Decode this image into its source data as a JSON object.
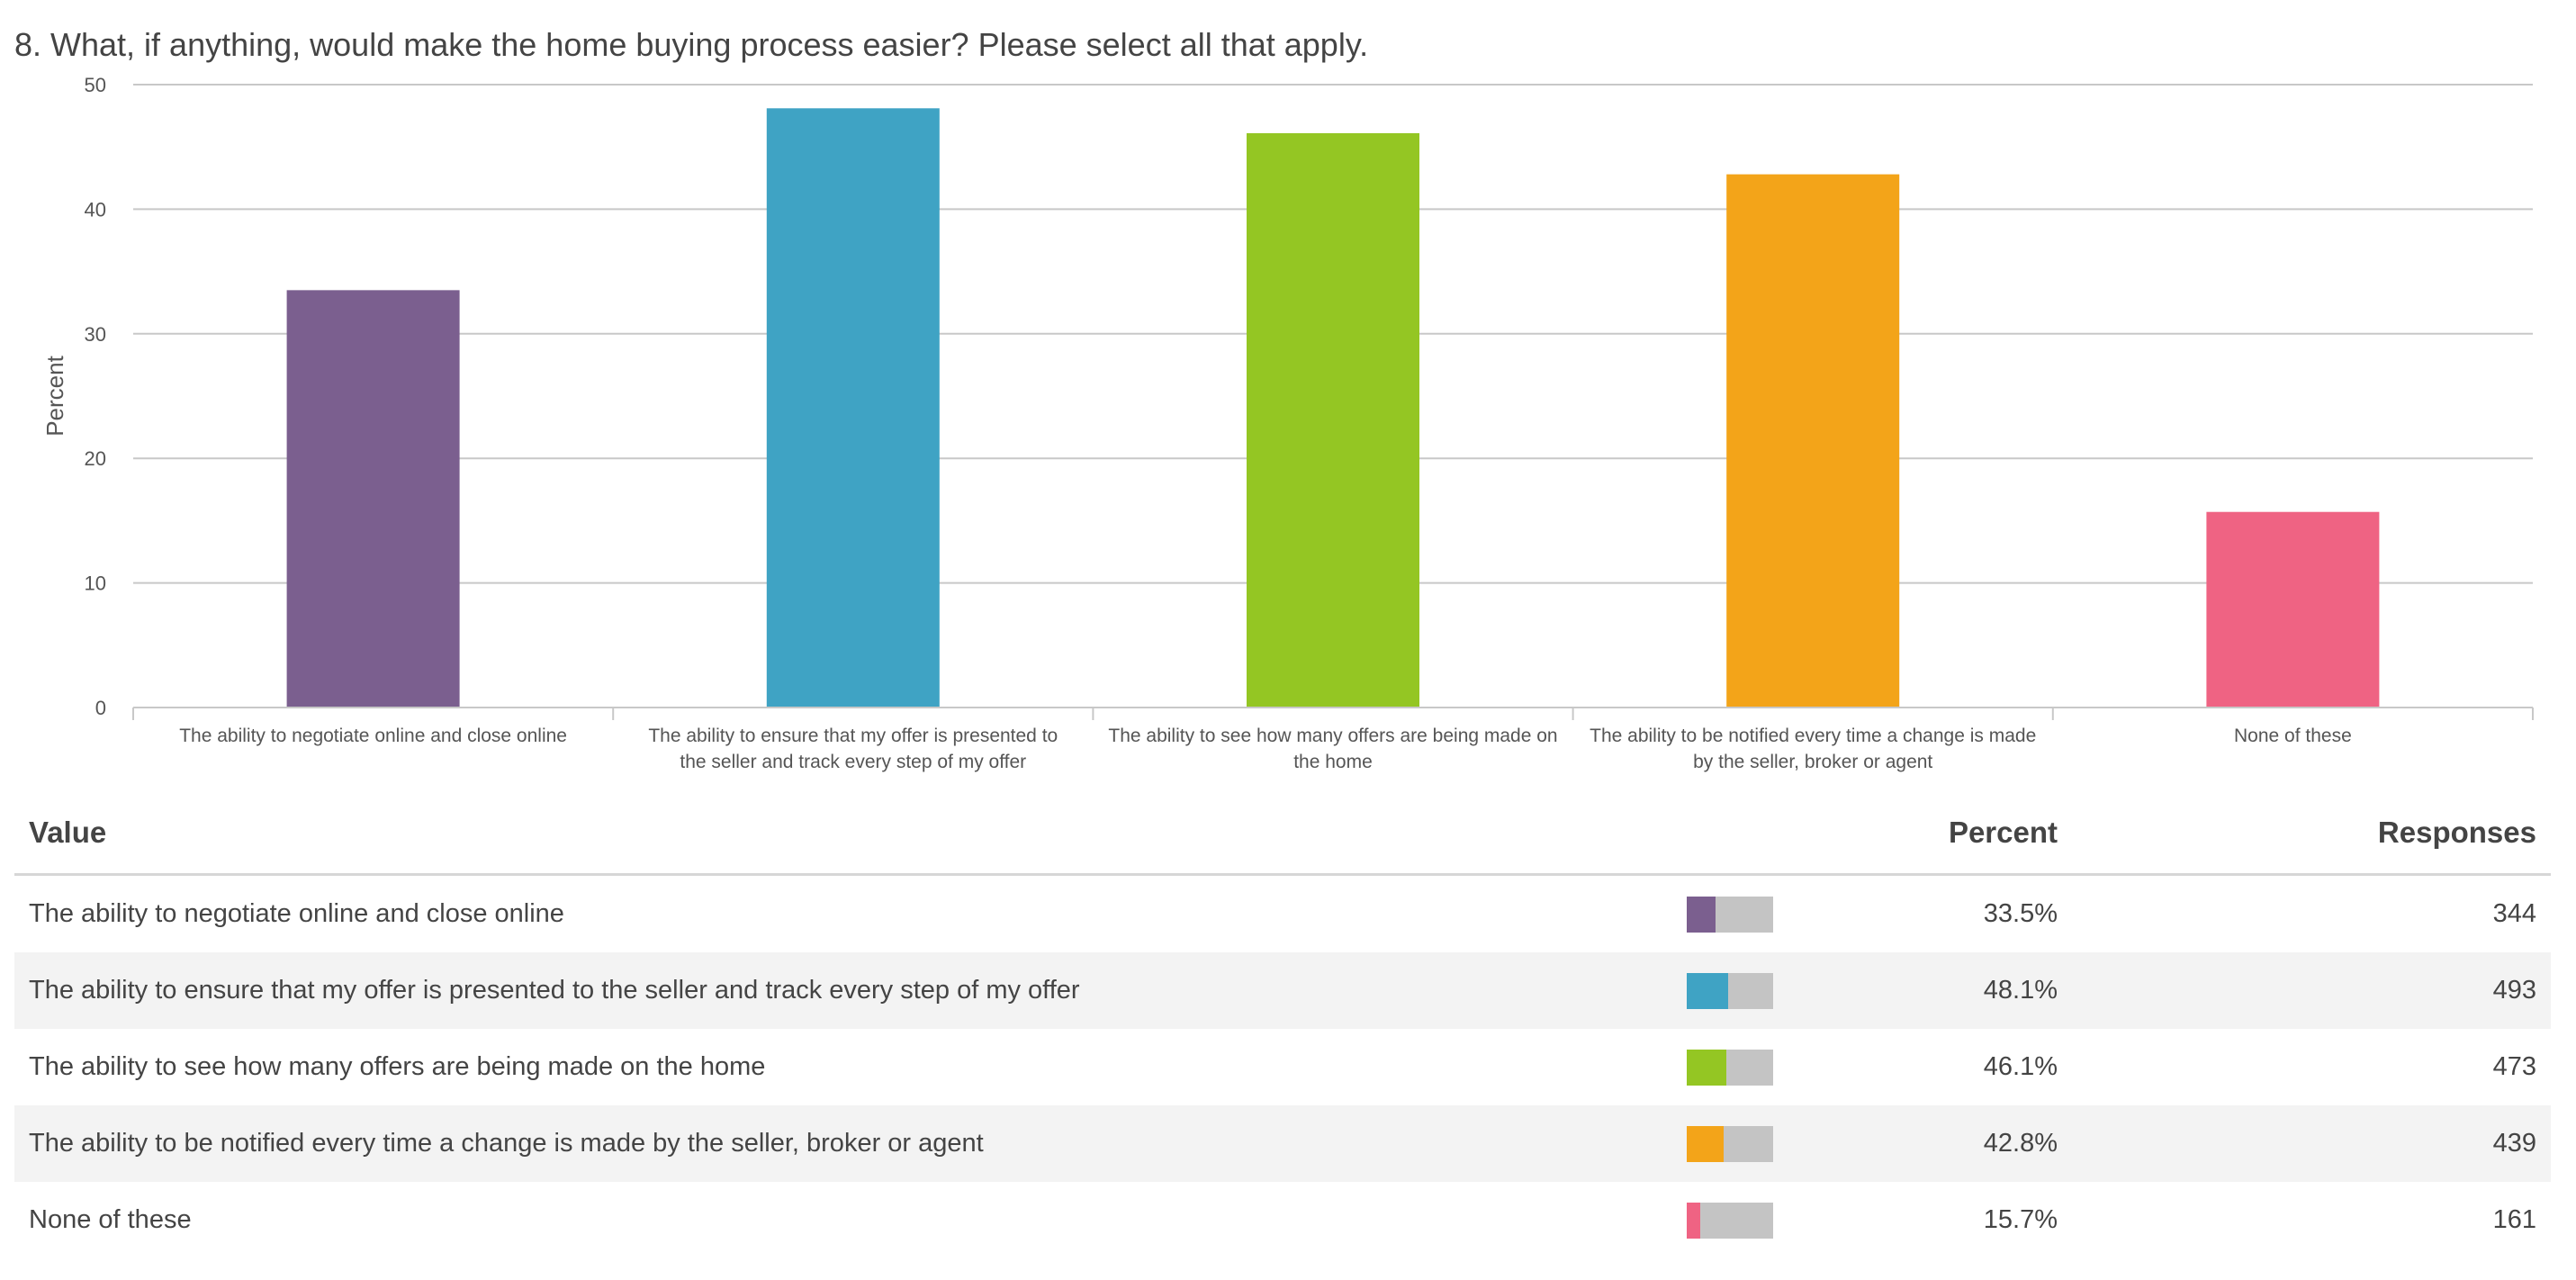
{
  "question": "8. What, if anything, would make the home buying process easier? Please select all that apply.",
  "chart_data": {
    "type": "bar",
    "title": "8. What, if anything, would make the home buying process easier? Please select all that apply.",
    "xlabel": "",
    "ylabel": "Percent",
    "ylim": [
      0,
      50
    ],
    "yticks": [
      "0",
      "10",
      "20",
      "30",
      "40",
      "50"
    ],
    "grid": true,
    "categories": [
      "The ability to negotiate online and close online",
      "The ability to ensure that my offer is presented to the seller and track every step of my offer",
      "The ability to see how many offers are being made on the home",
      "The ability to be notified every time a change is made by the seller, broker or agent",
      "None of these"
    ],
    "category_lines": [
      [
        "The ability to negotiate online and close online"
      ],
      [
        "The ability to ensure that my offer is presented to",
        "the seller and track every step of my offer"
      ],
      [
        "The ability to see how many offers are being made on",
        "the home"
      ],
      [
        "The ability to be notified every time a change is made",
        "by the seller, broker or agent"
      ],
      [
        "None of these"
      ]
    ],
    "values": [
      33.5,
      48.1,
      46.1,
      42.8,
      15.7
    ],
    "colors": [
      "#7b5f8f",
      "#3fa3c4",
      "#94c623",
      "#f3a419",
      "#ef6383"
    ]
  },
  "table": {
    "headers": {
      "value": "Value",
      "percent": "Percent",
      "responses": "Responses"
    },
    "rows": [
      {
        "value": "The ability to negotiate online and close online",
        "percent": "33.5%",
        "responses": "344",
        "fraction": 0.335,
        "color": "#7b5f8f"
      },
      {
        "value": "The ability to ensure that my offer is presented to the seller and track every step of my offer",
        "percent": "48.1%",
        "responses": "493",
        "fraction": 0.481,
        "color": "#3fa3c4"
      },
      {
        "value": "The ability to see how many offers are being made on the home",
        "percent": "46.1%",
        "responses": "473",
        "fraction": 0.461,
        "color": "#94c623"
      },
      {
        "value": "The ability to be notified every time a change is made by the seller, broker or agent",
        "percent": "42.8%",
        "responses": "439",
        "fraction": 0.428,
        "color": "#f3a419"
      },
      {
        "value": "None of these",
        "percent": "15.7%",
        "responses": "161",
        "fraction": 0.157,
        "color": "#ef6383"
      }
    ]
  }
}
